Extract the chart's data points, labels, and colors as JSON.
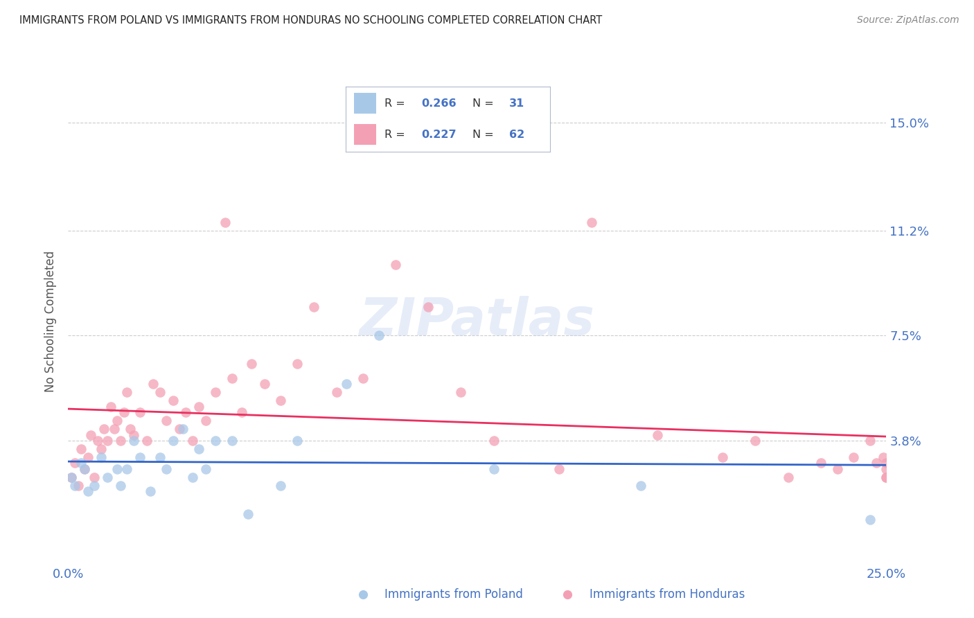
{
  "title": "IMMIGRANTS FROM POLAND VS IMMIGRANTS FROM HONDURAS NO SCHOOLING COMPLETED CORRELATION CHART",
  "source": "Source: ZipAtlas.com",
  "ylabel": "No Schooling Completed",
  "ytick_labels": [
    "15.0%",
    "11.2%",
    "7.5%",
    "3.8%"
  ],
  "ytick_values": [
    0.15,
    0.112,
    0.075,
    0.038
  ],
  "xlim": [
    0.0,
    0.25
  ],
  "ylim": [
    -0.005,
    0.165
  ],
  "color_poland": "#a8c8e8",
  "color_honduras": "#f4a0b4",
  "color_line_poland": "#3264c8",
  "color_line_honduras": "#e83060",
  "color_axis_labels": "#4472c4",
  "color_title": "#222222",
  "color_source": "#888888",
  "color_grid": "#cccccc",
  "poland_x": [
    0.001,
    0.002,
    0.004,
    0.005,
    0.006,
    0.008,
    0.01,
    0.012,
    0.015,
    0.016,
    0.018,
    0.02,
    0.022,
    0.025,
    0.028,
    0.03,
    0.032,
    0.035,
    0.038,
    0.04,
    0.042,
    0.045,
    0.05,
    0.055,
    0.065,
    0.07,
    0.085,
    0.095,
    0.13,
    0.175,
    0.245
  ],
  "poland_y": [
    0.025,
    0.022,
    0.03,
    0.028,
    0.02,
    0.022,
    0.032,
    0.025,
    0.028,
    0.022,
    0.028,
    0.038,
    0.032,
    0.02,
    0.032,
    0.028,
    0.038,
    0.042,
    0.025,
    0.035,
    0.028,
    0.038,
    0.038,
    0.012,
    0.022,
    0.038,
    0.058,
    0.075,
    0.028,
    0.022,
    0.01
  ],
  "honduras_x": [
    0.001,
    0.002,
    0.003,
    0.004,
    0.005,
    0.006,
    0.007,
    0.008,
    0.009,
    0.01,
    0.011,
    0.012,
    0.013,
    0.014,
    0.015,
    0.016,
    0.017,
    0.018,
    0.019,
    0.02,
    0.022,
    0.024,
    0.026,
    0.028,
    0.03,
    0.032,
    0.034,
    0.036,
    0.038,
    0.04,
    0.042,
    0.045,
    0.048,
    0.05,
    0.053,
    0.056,
    0.06,
    0.065,
    0.07,
    0.075,
    0.082,
    0.09,
    0.1,
    0.11,
    0.12,
    0.13,
    0.15,
    0.16,
    0.18,
    0.2,
    0.21,
    0.22,
    0.23,
    0.235,
    0.24,
    0.245,
    0.247,
    0.249,
    0.25,
    0.25,
    0.25,
    0.25
  ],
  "honduras_y": [
    0.025,
    0.03,
    0.022,
    0.035,
    0.028,
    0.032,
    0.04,
    0.025,
    0.038,
    0.035,
    0.042,
    0.038,
    0.05,
    0.042,
    0.045,
    0.038,
    0.048,
    0.055,
    0.042,
    0.04,
    0.048,
    0.038,
    0.058,
    0.055,
    0.045,
    0.052,
    0.042,
    0.048,
    0.038,
    0.05,
    0.045,
    0.055,
    0.115,
    0.06,
    0.048,
    0.065,
    0.058,
    0.052,
    0.065,
    0.085,
    0.055,
    0.06,
    0.1,
    0.085,
    0.055,
    0.038,
    0.028,
    0.115,
    0.04,
    0.032,
    0.038,
    0.025,
    0.03,
    0.028,
    0.032,
    0.038,
    0.03,
    0.032,
    0.025,
    0.03,
    0.028,
    0.025
  ],
  "scatter_size": 110,
  "scatter_alpha": 0.75
}
